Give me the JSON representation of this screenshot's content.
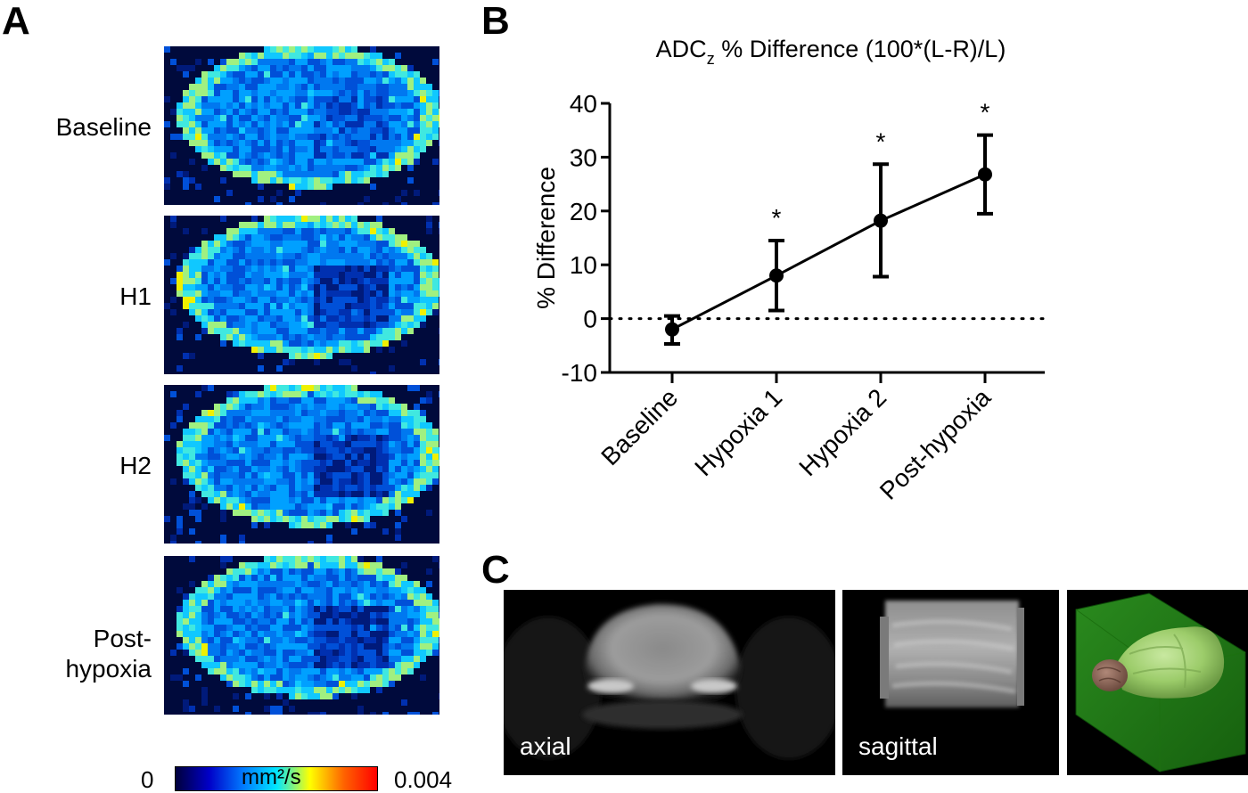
{
  "panels": {
    "a_letter": "A",
    "b_letter": "B",
    "c_letter": "C"
  },
  "panel_a": {
    "rows": [
      {
        "label": "Baseline"
      },
      {
        "label": "H1"
      },
      {
        "label": "H2"
      },
      {
        "label_line1": "Post-",
        "label_line2": "hypoxia"
      }
    ],
    "colorbar": {
      "min_label": "0",
      "max_label": "0.004",
      "unit_label": "mm²/s",
      "colors": [
        "#00003c",
        "#0000c8",
        "#0078ff",
        "#00e6ff",
        "#ffff00",
        "#ff6400",
        "#ff0000"
      ]
    }
  },
  "chart_data": {
    "type": "line",
    "title": "ADC₂ % Difference (100*(L-R)/L)",
    "title_main": "ADC",
    "title_sub": "z",
    "title_rest": " % Difference (100*(L-R)/L)",
    "ylabel": "% Difference",
    "xlabel": "",
    "categories": [
      "Baseline",
      "Hypoxia 1",
      "Hypoxia 2",
      "Post-hypoxia"
    ],
    "series": [
      {
        "values": [
          -2,
          8,
          18.2,
          26.8
        ],
        "error_low": [
          -4.7,
          1.5,
          7.8,
          19.5
        ],
        "error_high": [
          0.5,
          14.5,
          28.7,
          34.1
        ],
        "significance": [
          "",
          "*",
          "*",
          "*"
        ]
      }
    ],
    "ylim": [
      -10,
      40
    ],
    "yticks": [
      -10,
      0,
      10,
      20,
      30,
      40
    ],
    "reference_line": 0,
    "grid": false
  },
  "panel_c": {
    "axial_label": "axial",
    "sagittal_label": "sagittal"
  }
}
